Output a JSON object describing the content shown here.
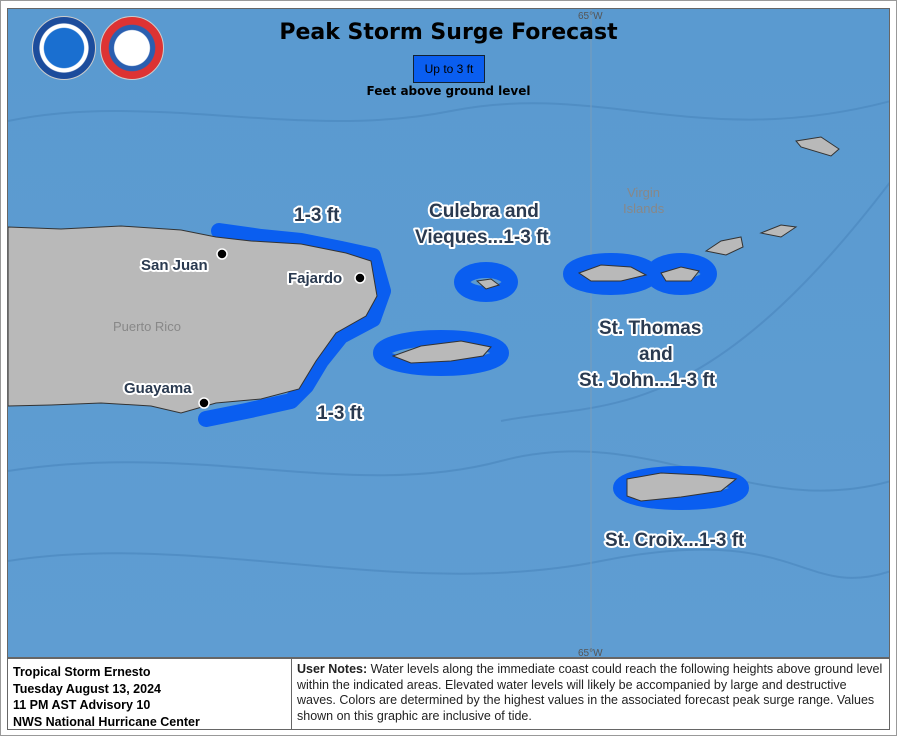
{
  "title": "Peak Storm Surge Forecast",
  "legend": {
    "label": "Up to 3 ft",
    "subtitle": "Feet above ground level",
    "color": "#0a5ef0"
  },
  "graticule": {
    "top": "65°W",
    "bottom": "65°W"
  },
  "logos": {
    "noaa": "NOAA",
    "nws": "NATIONAL WEATHER SERVICE"
  },
  "labels": {
    "north_pr": "1-3 ft",
    "south_pr": "1-3 ft",
    "culebra_1": "Culebra and",
    "culebra_2": "Vieques...1-3 ft",
    "stthomas_1": "St. Thomas",
    "stthomas_2": "and",
    "stthomas_3": "St. John...1-3 ft",
    "stcroix": "St. Croix...1-3 ft"
  },
  "cities": [
    "San Juan",
    "Fajardo",
    "Guayama"
  ],
  "regions": {
    "pr": "Puerto Rico",
    "vi_1": "Virgin",
    "vi_2": "Islands"
  },
  "footer": {
    "storm": "Tropical Storm Ernesto",
    "date": "Tuesday August 13, 2024",
    "advisory": "11 PM AST Advisory 10",
    "agency": "NWS National Hurricane Center",
    "notes_label": "User Notes:",
    "notes": " Water levels along the immediate coast could reach the following heights above ground level within the indicated areas. Elevated water levels will likely be accompanied by large and destructive waves. Colors are determined by the highest values in the associated forecast peak surge range. Values shown on this graphic are inclusive of tide."
  },
  "colors": {
    "ocean": "#5c9bd1",
    "land": "#b9b9b9",
    "surge": "#0a5ef0"
  }
}
